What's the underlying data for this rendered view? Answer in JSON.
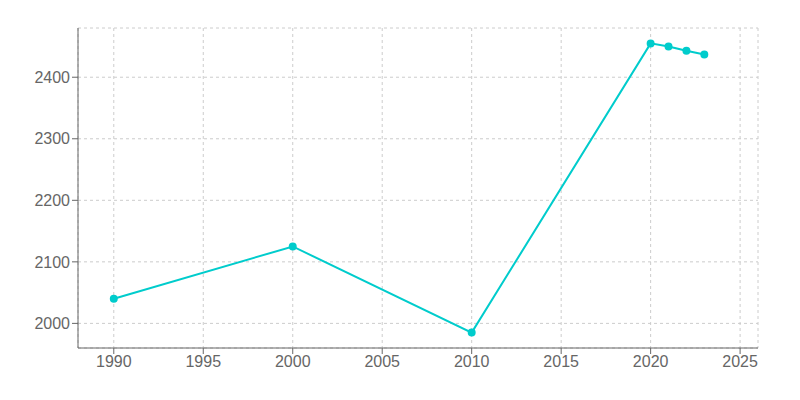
{
  "chart_data": {
    "type": "line",
    "x": [
      1990,
      2000,
      2010,
      2020,
      2021,
      2022,
      2023
    ],
    "values": [
      2040,
      2125,
      1985,
      2455,
      2450,
      2443,
      2437
    ],
    "color": "#00CCCC",
    "marker": "circle",
    "xlim": [
      1988,
      2026
    ],
    "ylim": [
      1960,
      2480
    ],
    "xticks": [
      1990,
      1995,
      2000,
      2005,
      2010,
      2015,
      2020,
      2025
    ],
    "yticks": [
      2000,
      2100,
      2200,
      2300,
      2400
    ],
    "grid": true
  }
}
